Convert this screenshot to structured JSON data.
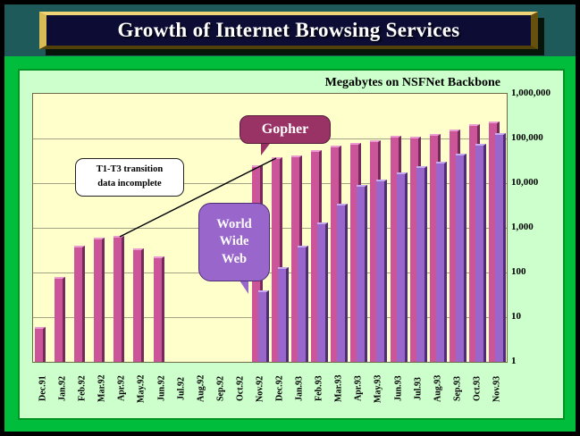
{
  "slide": {
    "title": "Growth of Internet Browsing Services"
  },
  "chart_data": {
    "type": "bar",
    "title": "Megabytes on NSFNet Backbone",
    "y_scale": "log10",
    "ylim": [
      1,
      1000000
    ],
    "y_tick_labels": [
      "1,000,000",
      "100,000",
      "10,000",
      "1,000",
      "100",
      "10",
      "1"
    ],
    "grid": true,
    "legend_position": "none",
    "categories": [
      "Dec.91",
      "Jan.92",
      "Feb.92",
      "Mar.92",
      "Apr.92",
      "May.92",
      "Jun.92",
      "Jul.92",
      "Aug.92",
      "Sep.92",
      "Oct.92",
      "Nov.92",
      "Dec.92",
      "Jan.93",
      "Feb.93",
      "Mar.93",
      "Apr.93",
      "May.93",
      "Jun.93",
      "Jul.93",
      "Aug.93",
      "Sep.93",
      "Oct.93",
      "Nov.93"
    ],
    "series": [
      {
        "name": "Gopher",
        "color": "#CC5599",
        "values": [
          6,
          80,
          400,
          590,
          650,
          340,
          230,
          null,
          null,
          null,
          null,
          25000,
          38000,
          42000,
          55000,
          70000,
          80000,
          92000,
          115000,
          108000,
          128000,
          160000,
          210000,
          240000
        ]
      },
      {
        "name": "World Wide Web",
        "color": "#9966CC",
        "values": [
          null,
          null,
          null,
          null,
          null,
          null,
          null,
          null,
          null,
          null,
          null,
          40,
          130,
          400,
          1300,
          3500,
          9000,
          12000,
          17000,
          24000,
          30000,
          45000,
          75000,
          130000
        ]
      }
    ],
    "annotations": [
      {
        "id": "incomplete-note",
        "lines": [
          "T1-T3 transition",
          "data incomplete"
        ]
      },
      {
        "id": "gopher-label",
        "lines": [
          "Gopher"
        ]
      },
      {
        "id": "www-label",
        "lines": [
          "World",
          "Wide",
          "Web"
        ]
      }
    ]
  },
  "colors": {
    "gopher_bar": "#CC5599",
    "www_bar": "#9966CC",
    "plot_bg": "#FFFFCC",
    "panel_bg": "#CCFFCC",
    "background_green": "#00BE3C",
    "top_band_teal": "#1E5A5A",
    "gopher_callout": "#993366",
    "www_callout": "#9966CC",
    "title_bar_bg": "#0C0C34",
    "title_frame_gold": "#D9BB55"
  }
}
